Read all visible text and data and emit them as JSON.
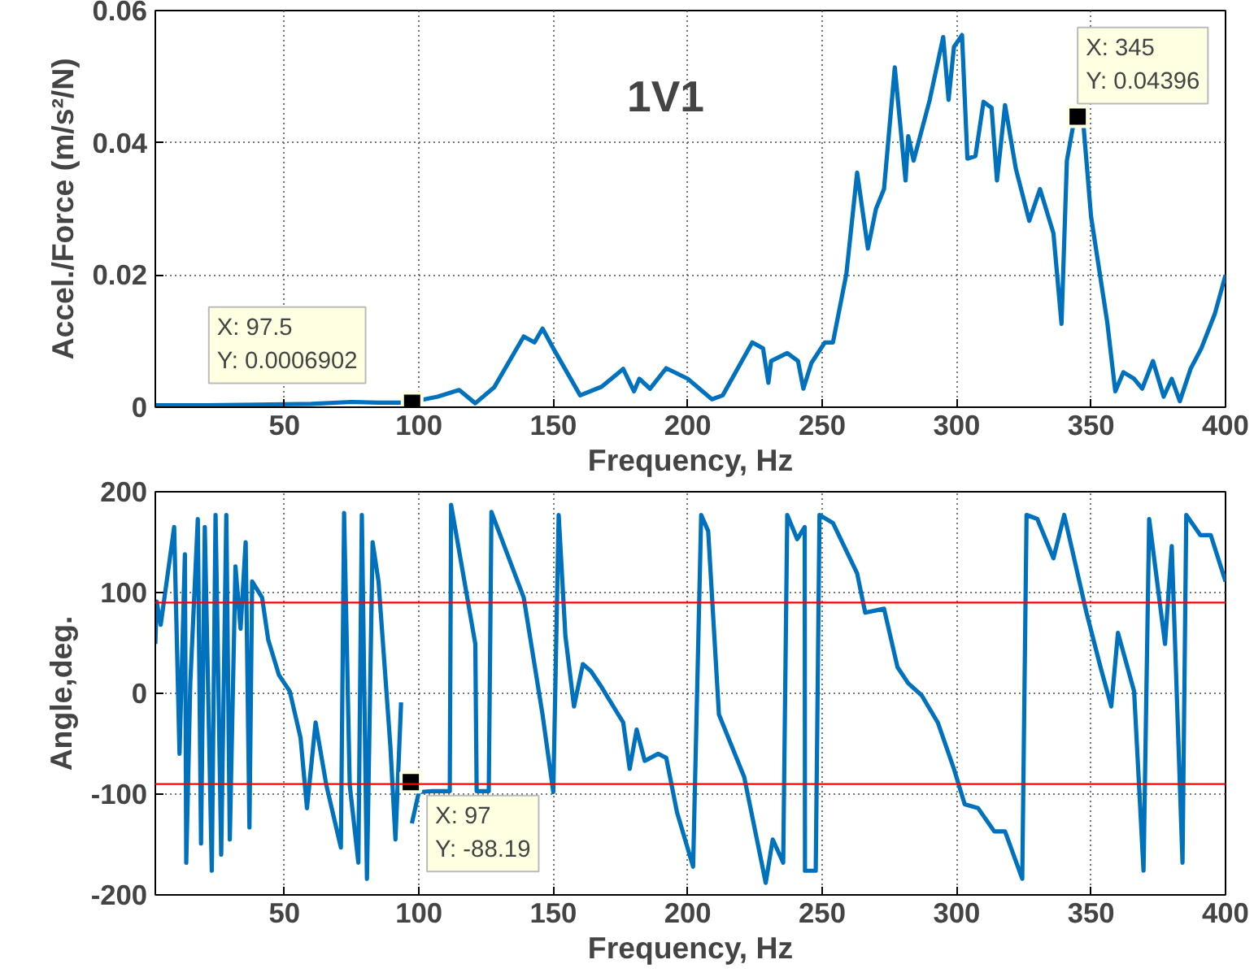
{
  "chart_data": [
    {
      "type": "line",
      "title": "1V1",
      "xlabel": "Frequency, Hz",
      "ylabel": "Accel./Force (m/s²/N)",
      "xlim": [
        2,
        400
      ],
      "xticks": [
        50,
        100,
        150,
        200,
        250,
        300,
        350,
        400
      ],
      "ylim": [
        0,
        0.06
      ],
      "yticks": [
        0,
        0.02,
        0.04,
        0.06
      ],
      "grid": true,
      "line_style": "solid",
      "series": [
        {
          "color": "#0072bd",
          "x": [
            2,
            20,
            40,
            60,
            75,
            85,
            96,
            107,
            115,
            121,
            128,
            136,
            139,
            143,
            146,
            150,
            160,
            168,
            176,
            180,
            182,
            186,
            192,
            200,
            209,
            213,
            224,
            228,
            230,
            231,
            237,
            241,
            243,
            246,
            251,
            254,
            259,
            263,
            267,
            270,
            273,
            277,
            281,
            282,
            284,
            290,
            295,
            297,
            299,
            302,
            304,
            307,
            310,
            313,
            315,
            318,
            322,
            327,
            331,
            336,
            339,
            341,
            344,
            347,
            350,
            356,
            359,
            362,
            366,
            369,
            373,
            377,
            380,
            383,
            387,
            391,
            396,
            400
          ],
          "values": [
            0.0003,
            0.0003,
            0.0004,
            0.0005,
            0.0008,
            0.0007,
            0.0007,
            0.0016,
            0.0026,
            0.0006,
            0.003,
            0.0086,
            0.0107,
            0.0098,
            0.0119,
            0.0089,
            0.0018,
            0.0031,
            0.0058,
            0.0024,
            0.0043,
            0.0028,
            0.0059,
            0.0043,
            0.0012,
            0.0018,
            0.0098,
            0.0089,
            0.0037,
            0.007,
            0.0082,
            0.007,
            0.0028,
            0.0067,
            0.0098,
            0.0098,
            0.0202,
            0.0355,
            0.024,
            0.03,
            0.033,
            0.0514,
            0.0343,
            0.041,
            0.0373,
            0.0465,
            0.056,
            0.0465,
            0.0545,
            0.0563,
            0.0376,
            0.038,
            0.0462,
            0.0453,
            0.0343,
            0.0457,
            0.0361,
            0.0282,
            0.033,
            0.0263,
            0.0126,
            0.0373,
            0.0441,
            0.0435,
            0.0288,
            0.0129,
            0.0024,
            0.0053,
            0.0043,
            0.0028,
            0.007,
            0.0016,
            0.0043,
            0.0009,
            0.0058,
            0.0089,
            0.0141,
            0.02
          ]
        }
      ],
      "annotations": [
        {
          "text": "X: 97.5\nY: 0.0006902",
          "x": 97.5,
          "y": 0.0006902
        },
        {
          "text": "X: 345\nY: 0.04396",
          "x": 345,
          "y": 0.04396
        }
      ]
    },
    {
      "type": "line",
      "xlabel": "Frequency, Hz",
      "ylabel": "Angle,deg.",
      "xlim": [
        2,
        400
      ],
      "xticks": [
        50,
        100,
        150,
        200,
        250,
        300,
        350,
        400
      ],
      "ylim": [
        -200,
        200
      ],
      "yticks": [
        -200,
        -100,
        0,
        100,
        200
      ],
      "grid": true,
      "line_style": "solid",
      "ref_lines": [
        {
          "axis": "y",
          "value": 90,
          "color": "#ff0000"
        },
        {
          "axis": "y",
          "value": -90,
          "color": "#ff0000"
        }
      ],
      "series": [
        {
          "color": "#0072bd",
          "x": [
            2,
            2.5,
            4,
            7,
            9,
            11,
            13,
            13.5,
            15,
            17.8,
            19,
            20.4,
            23,
            24.4,
            26.5,
            28.4,
            29.7,
            31.8,
            33.7,
            35.6,
            37,
            38,
            41.7,
            44,
            48,
            52,
            56,
            58.4,
            61.6,
            65.6,
            71,
            72.2,
            74.3,
            77.5,
            78.8,
            80.7,
            82.8,
            85,
            89.4,
            91.3,
            93.4,
            96,
            97.4,
            100,
            105,
            111.5,
            112,
            121,
            121.5,
            126,
            127,
            139,
            146,
            150,
            152,
            154.5,
            157.7,
            161,
            164,
            168,
            176,
            178.4,
            181,
            184,
            189,
            192,
            196,
            202,
            205,
            207.6,
            211.6,
            221,
            229,
            231.6,
            235.5,
            237,
            240.7,
            243.5,
            243.6,
            247.6,
            249,
            254,
            263,
            266,
            273,
            278,
            282,
            287,
            293,
            299,
            303,
            308,
            314,
            318,
            324.4,
            326,
            330,
            336,
            340,
            348.3,
            353.5,
            357.5,
            360,
            366,
            369.5,
            371.6,
            377.5,
            380,
            384,
            385.4,
            390.6,
            394.5,
            400
          ],
          "values": [
            49,
            91,
            68,
            126,
            165,
            -60,
            138,
            -168,
            10,
            173,
            -149,
            165,
            -176,
            177,
            -160,
            177,
            -145,
            126,
            64,
            150,
            -133,
            111,
            95,
            53,
            18,
            2,
            -44,
            -114,
            -29,
            -91,
            -153,
            179,
            -91,
            -168,
            177,
            -184,
            150,
            111,
            -52,
            -145,
            -9,
            null,
            -129,
            -98,
            -97,
            -97,
            187,
            49,
            -97,
            -97,
            180,
            95,
            -21,
            -98,
            177,
            57,
            -13,
            29,
            22,
            6,
            -29,
            -75,
            -36,
            -67,
            -60,
            -64,
            -118,
            -172,
            177,
            161,
            -21,
            -83,
            -188,
            -145,
            -168,
            177,
            153,
            165,
            -176,
            -176,
            177,
            169,
            119,
            80,
            84,
            26,
            10,
            -2,
            -29,
            -75,
            -110,
            -114,
            -137,
            -137,
            -184,
            177,
            173,
            134,
            177,
            80,
            26,
            -13,
            60,
            2,
            -176,
            173,
            49,
            146,
            -168,
            177,
            157,
            157,
            111
          ]
        }
      ],
      "annotations": [
        {
          "text": "X: 97\nY: -88.19",
          "x": 97,
          "y": -88.19
        }
      ]
    }
  ]
}
